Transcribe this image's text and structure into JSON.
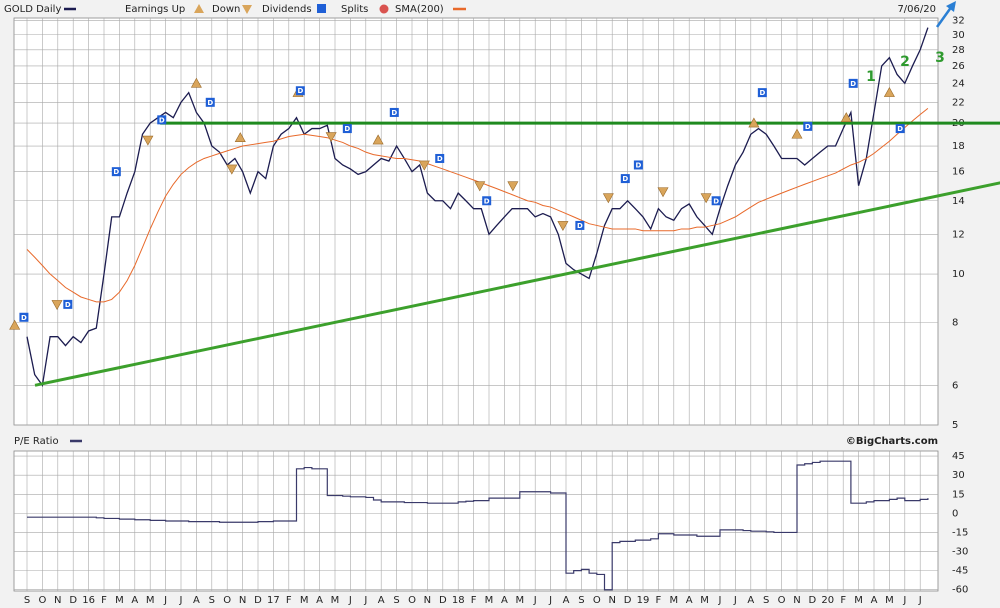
{
  "chart_data": [
    {
      "type": "line",
      "log_scale": true,
      "grid": true,
      "date_label": "7/06/20",
      "ylim": [
        5,
        32.4
      ],
      "yticks": [
        5,
        6,
        8,
        10,
        12,
        14,
        16,
        18,
        20,
        22,
        24,
        26,
        28,
        30,
        32
      ],
      "series": [
        {
          "name": "GOLD Daily",
          "color": "#1c1c50",
          "values": [
            7.5,
            6.3,
            6.0,
            7.5,
            7.5,
            7.2,
            7.5,
            7.3,
            7.7,
            7.8,
            10,
            13,
            13,
            14.5,
            16,
            19,
            20,
            20.5,
            21,
            20.5,
            22,
            23,
            21,
            20,
            18,
            17.5,
            16.5,
            17,
            16,
            14.5,
            16,
            15.5,
            18,
            19,
            19.5,
            20.5,
            19,
            19.5,
            19.5,
            19.8,
            17,
            16.5,
            16.2,
            15.8,
            16,
            16.5,
            17,
            16.8,
            18,
            17,
            16,
            16.5,
            14.5,
            14,
            14,
            13.5,
            14.5,
            14,
            13.5,
            13.5,
            12,
            12.5,
            13,
            13.5,
            13.5,
            13.5,
            13,
            13.2,
            13,
            12,
            10.5,
            10.2,
            10,
            9.8,
            11,
            12.5,
            13.5,
            13.5,
            14,
            13.5,
            13,
            12.3,
            13.5,
            13,
            12.8,
            13.5,
            13.8,
            13,
            12.5,
            12,
            13.5,
            15,
            16.5,
            17.5,
            19,
            19.5,
            19,
            18,
            17,
            17,
            17,
            16.5,
            17,
            17.5,
            18,
            18,
            19.5,
            21,
            15,
            17,
            21,
            26,
            27,
            25,
            24,
            26,
            28,
            31
          ]
        },
        {
          "name": "SMA(200)",
          "color": "#e8692a",
          "values": [
            11.2,
            10.8,
            10.4,
            10,
            9.7,
            9.4,
            9.2,
            9.0,
            8.9,
            8.8,
            8.8,
            8.9,
            9.2,
            9.7,
            10.4,
            11.3,
            12.3,
            13.3,
            14.3,
            15.1,
            15.8,
            16.3,
            16.7,
            17.0,
            17.2,
            17.4,
            17.6,
            17.8,
            18.0,
            18.1,
            18.2,
            18.3,
            18.4,
            18.6,
            18.8,
            18.9,
            19.0,
            18.9,
            18.8,
            18.7,
            18.5,
            18.3,
            18.0,
            17.8,
            17.5,
            17.3,
            17.2,
            17.1,
            17.0,
            17.0,
            16.9,
            16.8,
            16.6,
            16.4,
            16.2,
            16.0,
            15.8,
            15.6,
            15.4,
            15.2,
            15.0,
            14.8,
            14.6,
            14.4,
            14.2,
            14.0,
            13.9,
            13.7,
            13.6,
            13.4,
            13.2,
            13.0,
            12.8,
            12.6,
            12.5,
            12.4,
            12.3,
            12.3,
            12.3,
            12.3,
            12.2,
            12.2,
            12.2,
            12.2,
            12.2,
            12.3,
            12.3,
            12.4,
            12.4,
            12.5,
            12.6,
            12.8,
            13.0,
            13.3,
            13.6,
            13.9,
            14.1,
            14.3,
            14.5,
            14.7,
            14.9,
            15.1,
            15.3,
            15.5,
            15.7,
            15.9,
            16.2,
            16.5,
            16.7,
            17.0,
            17.4,
            17.9,
            18.4,
            19.0,
            19.6,
            20.2,
            20.8,
            21.4
          ]
        }
      ],
      "markers": {
        "earnings_up": {
          "name": "Earnings Up",
          "color": "#d9a55b",
          "x": [
            -1.6,
            22,
            27.7,
            35.2,
            45.6,
            94.4,
            100,
            106.4,
            112
          ],
          "y": [
            7.9,
            24,
            18.7,
            23,
            18.5,
            20,
            19,
            20.5,
            23
          ]
        },
        "earnings_down": {
          "name": "Down",
          "color": "#d9a55b",
          "x": [
            3.9,
            15.7,
            26.6,
            39.5,
            51.6,
            58.8,
            63.1,
            69.6,
            75.5,
            82.6,
            88.2
          ],
          "y": [
            8.7,
            18.5,
            16.2,
            18.8,
            16.5,
            15,
            15,
            12.5,
            14.2,
            14.6,
            14.2
          ]
        },
        "dividends": {
          "name": "Dividends",
          "symbol": "D",
          "color": "#1f5fd6",
          "x": [
            -0.4,
            5.3,
            11.6,
            17.5,
            23.8,
            35.5,
            41.6,
            47.7,
            53.6,
            59.7,
            71.8,
            77.7,
            79.4,
            89.5,
            95.5,
            101.4,
            107.3,
            113.4
          ],
          "y": [
            8.2,
            8.7,
            16,
            20.3,
            22,
            23.2,
            19.5,
            21,
            17,
            14,
            12.5,
            15.5,
            16.5,
            14,
            23,
            19.7,
            24,
            19.5
          ]
        },
        "splits": {
          "name": "Splits",
          "color": "#d9534f"
        }
      },
      "trendlines": [
        {
          "color": "#1f8a1f",
          "x": [
            17.3,
            126.4
          ],
          "y": [
            20,
            20
          ]
        },
        {
          "color": "#3ca02c",
          "x": [
            1.04,
            126.4
          ],
          "y": [
            6,
            15.2
          ]
        }
      ],
      "annotations": [
        "1",
        "2",
        "3"
      ]
    },
    {
      "type": "line",
      "step": true,
      "title": "P/E Ratio",
      "source": "©BigCharts.com",
      "grid": true,
      "color": "#3a3a6a",
      "categories": [
        "S",
        null,
        "O",
        null,
        "N",
        null,
        "D",
        null,
        "16",
        null,
        "F",
        null,
        "M",
        null,
        "A",
        null,
        "M",
        null,
        "J",
        null,
        "J",
        null,
        "A",
        null,
        "S",
        null,
        "O",
        null,
        "N",
        null,
        "D",
        null,
        "17",
        null,
        "F",
        null,
        "M",
        null,
        "A",
        null,
        "M",
        null,
        "J",
        null,
        "J",
        null,
        "A",
        null,
        "S",
        null,
        "O",
        null,
        "N",
        null,
        "D",
        null,
        "18",
        null,
        "F",
        null,
        "M",
        null,
        "A",
        null,
        "M",
        null,
        "J",
        null,
        "J",
        null,
        "A",
        null,
        "S",
        null,
        "O",
        null,
        "N",
        null,
        "D",
        null,
        "19",
        null,
        "F",
        null,
        "M",
        null,
        "A",
        null,
        "M",
        null,
        "J",
        null,
        "J",
        null,
        "A",
        null,
        "S",
        null,
        "O",
        null,
        "N",
        null,
        "D",
        null,
        "20",
        null,
        "F",
        null,
        "M",
        null,
        "A",
        null,
        "M",
        null,
        "J",
        null,
        "J",
        null
      ],
      "values": [
        -3,
        -3,
        -3,
        -3,
        -3,
        -3,
        -3,
        -3,
        -3,
        -3.5,
        -4,
        -4,
        -4.5,
        -4.5,
        -5,
        -5,
        -5.5,
        -5.5,
        -6,
        -6,
        -6,
        -6.5,
        -6.5,
        -6.5,
        -6.5,
        -7,
        -7,
        -7,
        -7,
        -7,
        -6.5,
        -6.5,
        -6,
        -6,
        -6,
        35,
        36,
        35,
        35,
        14,
        14,
        13.5,
        13,
        13,
        12.5,
        10.5,
        9,
        9,
        9,
        8.5,
        8.5,
        8.5,
        8,
        8,
        8,
        8,
        9,
        9.5,
        10,
        10,
        12,
        12,
        12,
        12,
        17,
        17,
        17,
        17,
        16,
        16,
        -47,
        -45,
        -44,
        -47,
        -48,
        -60,
        -23,
        -22,
        -22,
        -21,
        -21,
        -20,
        -16,
        -16,
        -17,
        -17,
        -17,
        -18,
        -18,
        -18,
        -13,
        -13,
        -13,
        -13.5,
        -14,
        -14,
        -14.5,
        -15,
        -15,
        -15,
        38,
        39,
        40,
        41,
        41,
        41,
        41,
        8,
        8,
        9,
        10,
        10,
        11,
        12,
        10,
        10,
        11,
        12
      ],
      "ylim": [
        -61,
        49
      ],
      "yticks": [
        45,
        30,
        15,
        0,
        -15,
        -30,
        -45,
        -60
      ]
    }
  ]
}
